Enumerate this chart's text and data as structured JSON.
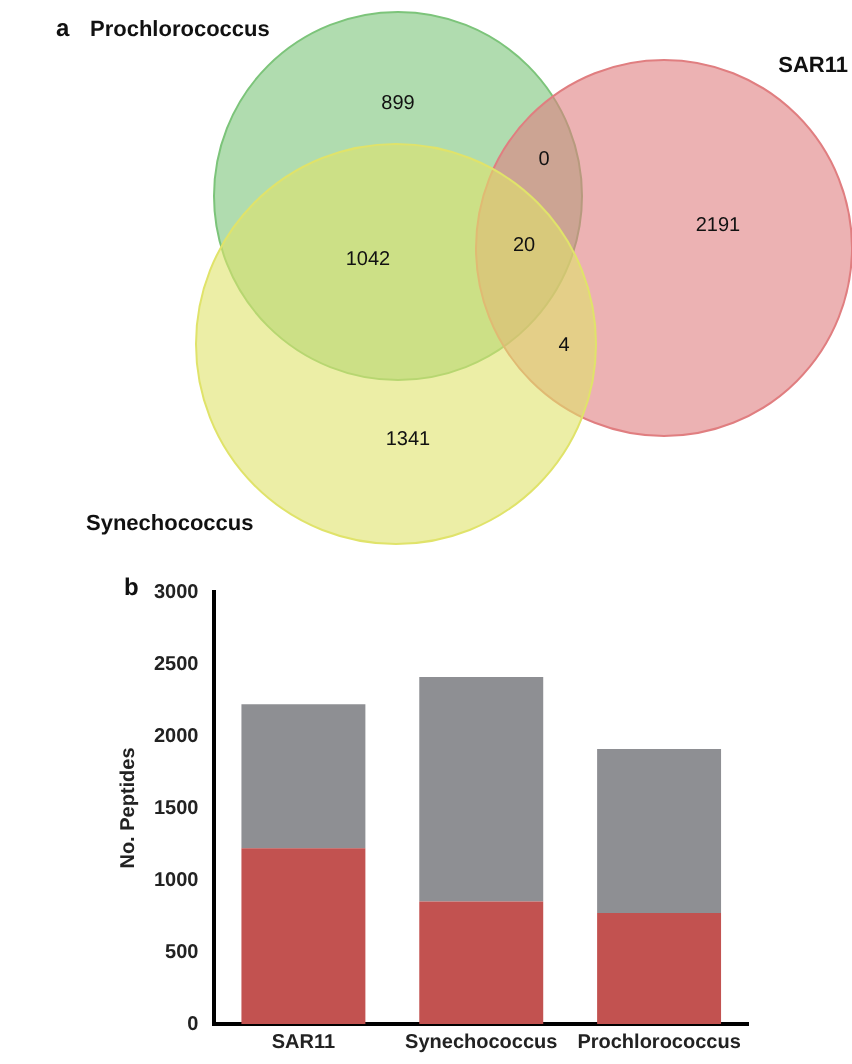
{
  "chart_data": [
    {
      "type": "other",
      "title": "a",
      "categories": [
        "Prochlorococcus",
        "SAR11",
        "Synechococcus"
      ],
      "colors": [
        "#7cc47a",
        "#e07e80",
        "#e0e36a"
      ],
      "annotations": [
        "899",
        "0",
        "2191",
        "1042",
        "20",
        "4",
        "1341"
      ]
    },
    {
      "type": "bar",
      "title": "b",
      "ylabel": "No. Peptides",
      "categories": [
        "SAR11",
        "Synechococcus",
        "Prochlorococcus"
      ],
      "stacked": true,
      "series": [
        {
          "color": "#c25250",
          "values": [
            1220,
            850,
            770
          ]
        },
        {
          "color": "#8e8f93",
          "values": [
            1000,
            1560,
            1140
          ]
        }
      ],
      "ylim": [
        0,
        3000
      ],
      "yticks": [
        0,
        500,
        1000,
        1500,
        2000,
        2500,
        3000
      ],
      "grid": false,
      "legend": false
    }
  ]
}
